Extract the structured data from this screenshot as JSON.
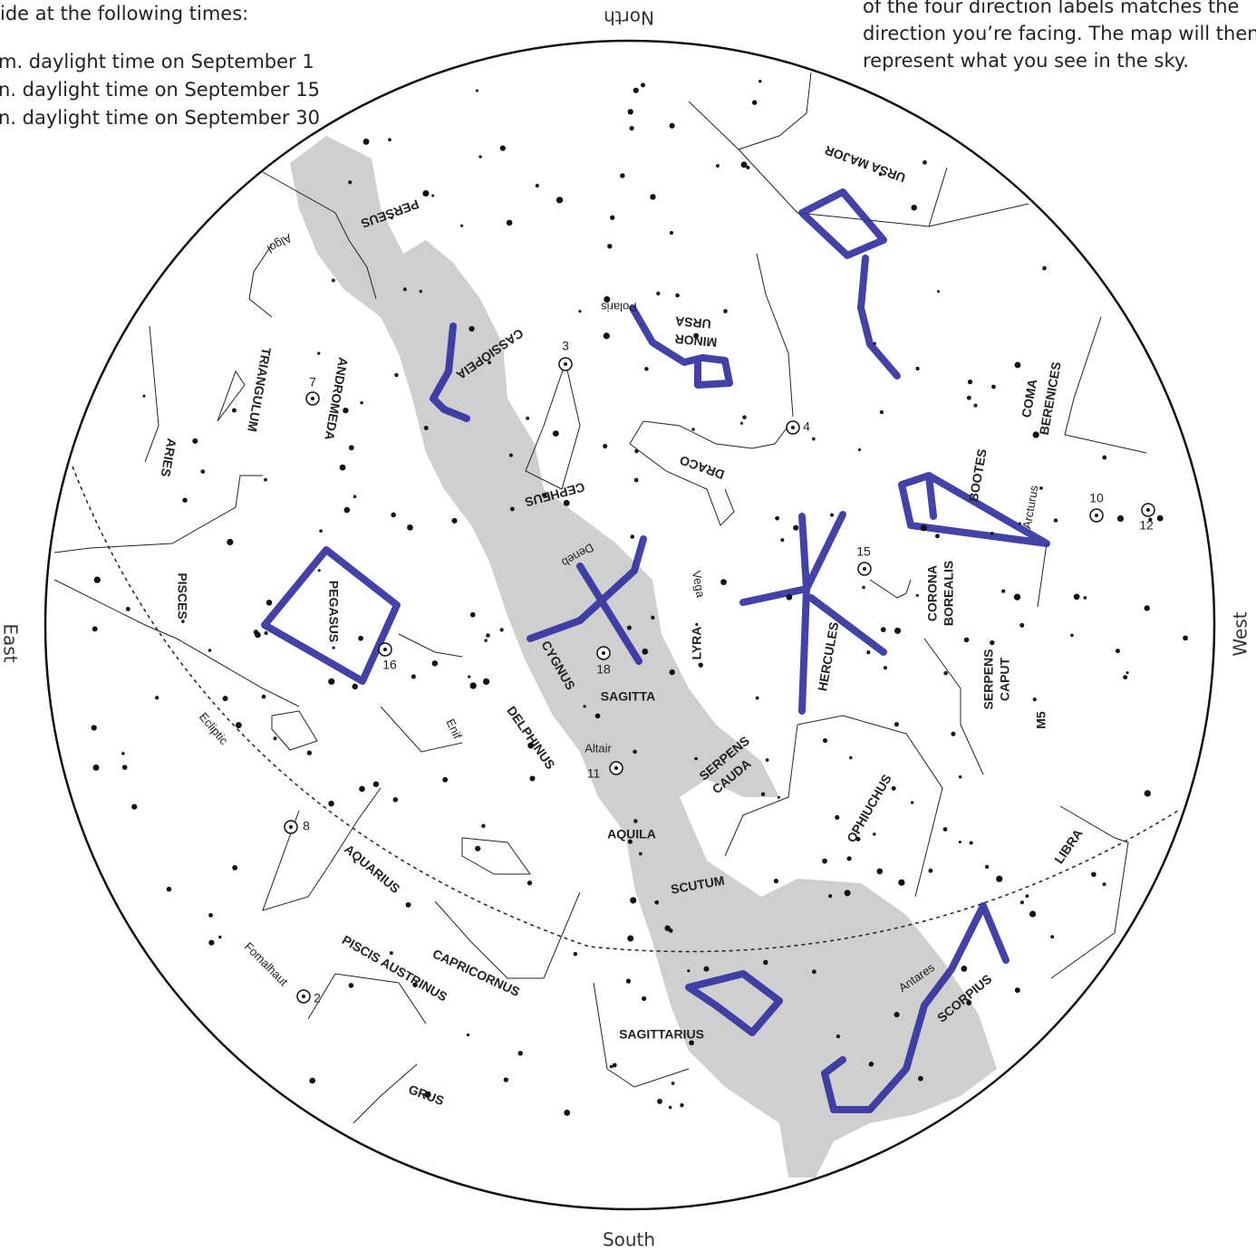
{
  "header": {
    "left_lines": [
      "ide at the following times:",
      "m. daylight time on September 1",
      "n. daylight time on September 15",
      "n. daylight time on September 30"
    ],
    "right_lines": [
      "of the four direction labels matches the",
      "direction you’re facing. The map will then",
      "represent what you see in the sky."
    ]
  },
  "directions": {
    "north": "North",
    "south": "South",
    "east": "East",
    "west": "West"
  },
  "labels": [
    "URSA MAJOR",
    "PERSEUS",
    "Algol",
    "CASSIOPEIA",
    "ANDROMEDA",
    "TRIANGULUM",
    "ARIES",
    "URSA",
    "MINOR",
    "Polaris",
    "DRACO",
    "CEPHEUS",
    "COMA",
    "BERENICES",
    "BOOTES",
    "Arcturus",
    "CORONA",
    "BOREALIS",
    "SERPENS",
    "CAPUT",
    "M5",
    "Deneb",
    "Vega",
    "PISCES",
    "PEGASUS",
    "LYRA",
    "CYGNUS",
    "HERCULES",
    "SAGITTA",
    "Enif",
    "DELPHINUS",
    "Ecliptic",
    "Altair",
    "SERPENS",
    "CAUDA",
    "OPHIUCHUS",
    "AQUILA",
    "LIBRA",
    "AQUARIUS",
    "SCUTUM",
    "Antares",
    "SCORPIUS",
    "PISCIS AUSTRINUS",
    "CAPRICORNUS",
    "Fomalhaut",
    "SAGITTARIUS",
    "GRUS"
  ],
  "object_numbers": [
    "3",
    "4",
    "7",
    "8",
    "10",
    "11",
    "12",
    "15",
    "16",
    "18",
    "2"
  ]
}
